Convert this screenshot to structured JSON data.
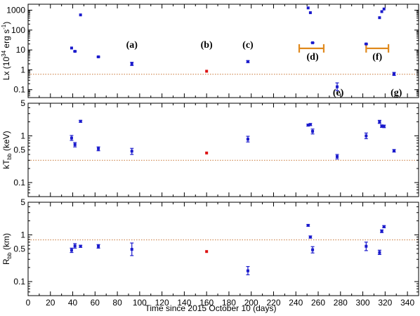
{
  "chart_data": {
    "type": "scatter",
    "xlabel": "Time since 2015 October 10 (days)",
    "xlim": [
      0,
      350
    ],
    "xticks": [
      0,
      20,
      40,
      60,
      80,
      100,
      120,
      140,
      160,
      180,
      200,
      220,
      240,
      260,
      280,
      300,
      320,
      340
    ],
    "colors": {
      "blue_points": "#1a1acc",
      "red_points": "#dd1111",
      "bars": "#e08a1e",
      "reference": "#c87533"
    },
    "panels": [
      {
        "id": "lx",
        "ylabel": "Lx (10",
        "ylabel_sup": "34",
        "ylabel_unit": " erg s",
        "ylabel_unit_sup": "-1",
        "ylabel_end": ")",
        "scale": "log",
        "ylim": [
          0.04,
          2000
        ],
        "yticks": [
          0.1,
          1,
          10,
          100,
          1000
        ],
        "yticklabels": [
          "0.1",
          "1",
          "10",
          "100",
          "1000"
        ],
        "reference_y": 0.6,
        "points": [
          {
            "x": 39,
            "y": 12.5,
            "err": [
              12,
              13
            ],
            "color": "blue"
          },
          {
            "x": 42,
            "y": 8.5,
            "err": [
              8,
              9
            ],
            "color": "blue"
          },
          {
            "x": 47,
            "y": 580,
            "err": [
              570,
              590
            ],
            "color": "blue"
          },
          {
            "x": 63,
            "y": 4.5,
            "err": [
              4.2,
              4.8
            ],
            "color": "blue"
          },
          {
            "x": 93,
            "y": 2.0,
            "err": [
              1.65,
              2.4
            ],
            "color": "blue"
          },
          {
            "x": 160,
            "y": 0.85,
            "err": [
              0.85,
              0.85
            ],
            "color": "red"
          },
          {
            "x": 197,
            "y": 2.6,
            "err": [
              2.3,
              2.9
            ],
            "color": "blue"
          },
          {
            "x": 251,
            "y": 1300,
            "err": [
              1250,
              1350
            ],
            "color": "blue"
          },
          {
            "x": 253,
            "y": 750,
            "err": [
              720,
              780
            ],
            "color": "blue"
          },
          {
            "x": 255,
            "y": 23,
            "err": [
              22,
              24
            ],
            "color": "blue"
          },
          {
            "x": 277,
            "y": 0.14,
            "err": [
              0.09,
              0.22
            ],
            "color": "blue"
          },
          {
            "x": 303,
            "y": 20,
            "err": [
              19,
              21
            ],
            "color": "blue"
          },
          {
            "x": 315,
            "y": 420,
            "err": [
              405,
              435
            ],
            "color": "blue"
          },
          {
            "x": 317,
            "y": 850,
            "err": [
              820,
              880
            ],
            "color": "blue"
          },
          {
            "x": 319,
            "y": 1150,
            "err": [
              1110,
              1190
            ],
            "color": "blue"
          },
          {
            "x": 328,
            "y": 0.62,
            "err": [
              0.52,
              0.74
            ],
            "color": "blue"
          }
        ],
        "bars": [
          {
            "x1": 243,
            "x2": 265,
            "y": 12
          },
          {
            "x1": 303,
            "x2": 323,
            "y": 12
          }
        ],
        "annotations": [
          {
            "text": "(a)",
            "x": 93,
            "y": 10
          },
          {
            "text": "(b)",
            "x": 160,
            "y": 10
          },
          {
            "text": "(c)",
            "x": 197,
            "y": 10
          },
          {
            "text": "(d)",
            "x": 255,
            "y": 2.5
          },
          {
            "text": "(e)",
            "x": 278,
            "y": 0.04
          },
          {
            "text": "(f)",
            "x": 313,
            "y": 2.5
          },
          {
            "text": "(g)",
            "x": 330,
            "y": 0.04
          }
        ]
      },
      {
        "id": "kt",
        "ylabel": "kT",
        "ylabel_sub": "bb",
        "ylabel_end": " (keV)",
        "scale": "log",
        "ylim": [
          0.05,
          5
        ],
        "yticks": [
          0.1,
          0.5,
          1,
          5
        ],
        "yticklabels": [
          "0.1",
          "0.5",
          "1",
          "5"
        ],
        "reference_y": 0.3,
        "points": [
          {
            "x": 39,
            "y": 0.9,
            "err": [
              0.8,
              1.02
            ],
            "color": "blue"
          },
          {
            "x": 42,
            "y": 0.65,
            "err": [
              0.58,
              0.72
            ],
            "color": "blue"
          },
          {
            "x": 47,
            "y": 2.05,
            "err": [
              1.95,
              2.15
            ],
            "color": "blue"
          },
          {
            "x": 63,
            "y": 0.53,
            "err": [
              0.48,
              0.58
            ],
            "color": "blue"
          },
          {
            "x": 93,
            "y": 0.47,
            "err": [
              0.4,
              0.54
            ],
            "color": "blue"
          },
          {
            "x": 160,
            "y": 0.43,
            "err": [
              0.43,
              0.43
            ],
            "color": "red"
          },
          {
            "x": 197,
            "y": 0.85,
            "err": [
              0.74,
              0.98
            ],
            "color": "blue"
          },
          {
            "x": 251,
            "y": 1.7,
            "err": [
              1.62,
              1.78
            ],
            "color": "blue"
          },
          {
            "x": 253,
            "y": 1.75,
            "err": [
              1.66,
              1.84
            ],
            "color": "blue"
          },
          {
            "x": 255,
            "y": 1.25,
            "err": [
              1.1,
              1.4
            ],
            "color": "blue"
          },
          {
            "x": 277,
            "y": 0.36,
            "err": [
              0.32,
              0.4
            ],
            "color": "blue"
          },
          {
            "x": 303,
            "y": 1.0,
            "err": [
              0.87,
              1.15
            ],
            "color": "blue"
          },
          {
            "x": 315,
            "y": 2.0,
            "err": [
              1.85,
              2.15
            ],
            "color": "blue"
          },
          {
            "x": 317,
            "y": 1.62,
            "err": [
              1.52,
              1.72
            ],
            "color": "blue"
          },
          {
            "x": 319,
            "y": 1.6,
            "err": [
              1.5,
              1.7
            ],
            "color": "blue"
          },
          {
            "x": 328,
            "y": 0.48,
            "err": [
              0.45,
              0.51
            ],
            "color": "blue"
          }
        ]
      },
      {
        "id": "r",
        "ylabel": "R",
        "ylabel_sub": "bb",
        "ylabel_end": " (km)",
        "scale": "log",
        "ylim": [
          0.05,
          5
        ],
        "yticks": [
          0.1,
          0.5,
          1,
          5
        ],
        "yticklabels": [
          "0.1",
          "0.5",
          "1",
          "5"
        ],
        "reference_y": 0.78,
        "points": [
          {
            "x": 39,
            "y": 0.47,
            "err": [
              0.42,
              0.52
            ],
            "color": "blue"
          },
          {
            "x": 42,
            "y": 0.58,
            "err": [
              0.52,
              0.65
            ],
            "color": "blue"
          },
          {
            "x": 47,
            "y": 0.57,
            "err": [
              0.54,
              0.6
            ],
            "color": "blue"
          },
          {
            "x": 63,
            "y": 0.57,
            "err": [
              0.52,
              0.62
            ],
            "color": "blue"
          },
          {
            "x": 93,
            "y": 0.49,
            "err": [
              0.36,
              0.67
            ],
            "color": "blue"
          },
          {
            "x": 160,
            "y": 0.44,
            "err": [
              0.44,
              0.44
            ],
            "color": "red"
          },
          {
            "x": 197,
            "y": 0.17,
            "err": [
              0.14,
              0.21
            ],
            "color": "blue"
          },
          {
            "x": 251,
            "y": 1.6,
            "err": [
              1.53,
              1.67
            ],
            "color": "blue"
          },
          {
            "x": 253,
            "y": 0.9,
            "err": [
              0.85,
              0.95
            ],
            "color": "blue"
          },
          {
            "x": 255,
            "y": 0.48,
            "err": [
              0.41,
              0.56
            ],
            "color": "blue"
          },
          {
            "x": 303,
            "y": 0.57,
            "err": [
              0.46,
              0.7
            ],
            "color": "blue"
          },
          {
            "x": 315,
            "y": 0.42,
            "err": [
              0.38,
              0.47
            ],
            "color": "blue"
          },
          {
            "x": 317,
            "y": 1.2,
            "err": [
              1.12,
              1.28
            ],
            "color": "blue"
          },
          {
            "x": 319,
            "y": 1.5,
            "err": [
              1.42,
              1.58
            ],
            "color": "blue"
          }
        ]
      }
    ]
  }
}
